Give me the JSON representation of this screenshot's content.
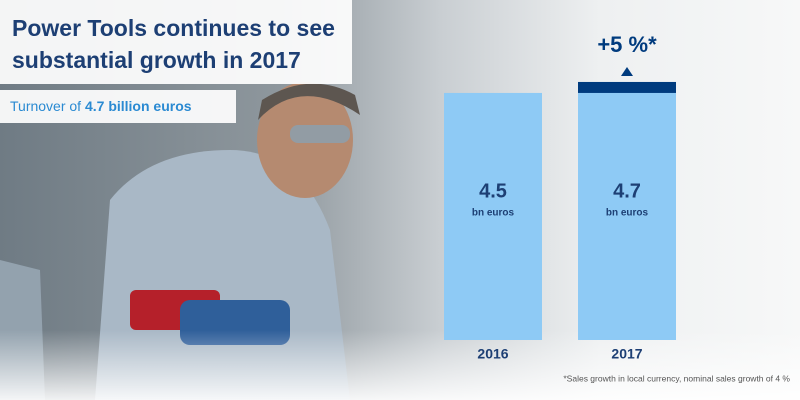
{
  "chart_data": {
    "type": "bar",
    "title_lines": [
      "Power Tools continues to see",
      "substantial growth in 2017"
    ],
    "subtitle": {
      "text": "Turnover of",
      "highlight": "4.7 billion euros"
    },
    "categories": [
      "2016",
      "2017"
    ],
    "values": [
      4.5,
      4.7
    ],
    "unit_label": "bn euros",
    "color": "#8ecaf5",
    "growth_color": "#003b7e",
    "ylim": [
      0,
      5
    ],
    "annotation": "+5 %*",
    "footnote": "*Sales growth in local currency, nominal sales growth of 4 %"
  }
}
